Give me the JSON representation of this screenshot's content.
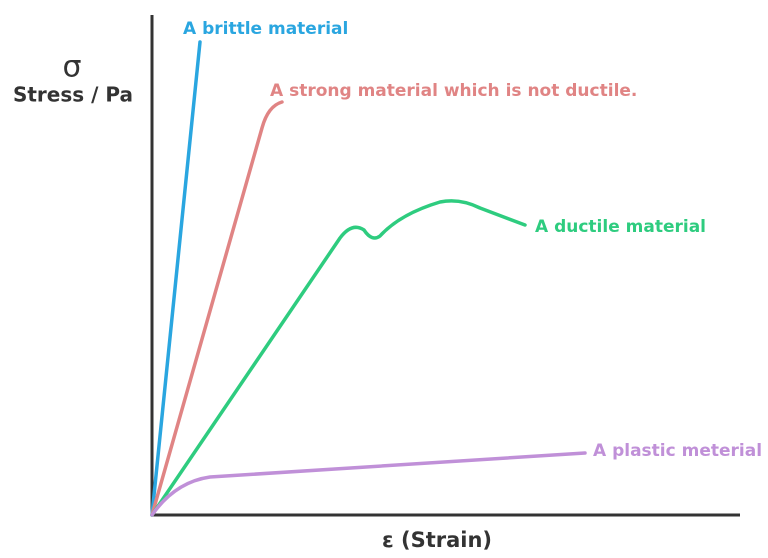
{
  "axes": {
    "y_symbol": "σ",
    "y_label": "Stress / Pa",
    "x_label": "ε (Strain)"
  },
  "curves": [
    {
      "label": "A brittle material"
    },
    {
      "label": "A strong material which is not ductile."
    },
    {
      "label": "A ductile material"
    },
    {
      "label": "A plastic meterial"
    }
  ]
}
